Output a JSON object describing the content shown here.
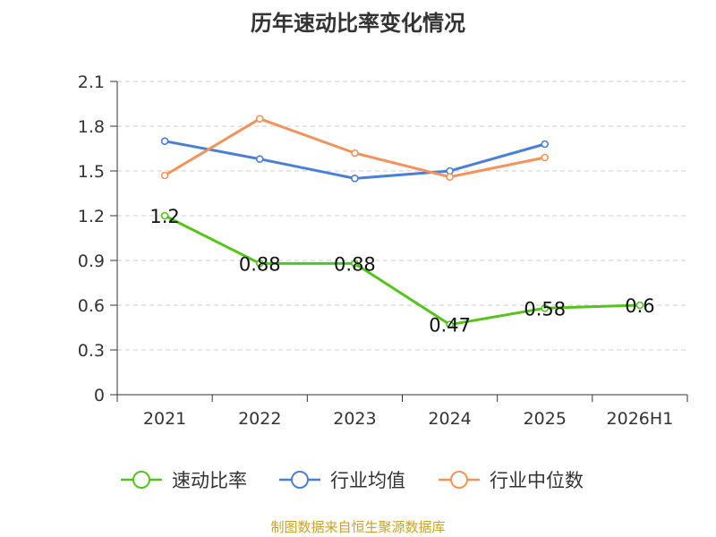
{
  "chart_data": {
    "type": "line",
    "title": "历年速动比率变化情况",
    "categories": [
      "2021",
      "2022",
      "2023",
      "2024",
      "2025",
      "2026H1"
    ],
    "yticks": [
      "0",
      "0.3",
      "0.6",
      "0.9",
      "1.2",
      "1.5",
      "1.8",
      "2.1"
    ],
    "ylim": [
      0,
      2.1
    ],
    "grid": true,
    "legend_position": "bottom",
    "series": [
      {
        "name": "速动比率",
        "color": "#52c41a",
        "values": [
          1.2,
          0.88,
          0.88,
          0.47,
          0.58,
          0.6
        ],
        "labels": [
          "1.2",
          "0.88",
          "0.88",
          "0.47",
          "0.58",
          "0.6"
        ]
      },
      {
        "name": "行业均值",
        "color": "#4a7fd8",
        "values": [
          1.7,
          1.58,
          1.45,
          1.5,
          1.68,
          null
        ]
      },
      {
        "name": "行业中位数",
        "color": "#f5925b",
        "values": [
          1.47,
          1.85,
          1.62,
          1.46,
          1.59,
          null
        ]
      }
    ]
  },
  "source_text": "制图数据来自恒生聚源数据库",
  "colors": {
    "source": "#c9a227",
    "axis": "#333333",
    "grid": "#cccccc"
  }
}
